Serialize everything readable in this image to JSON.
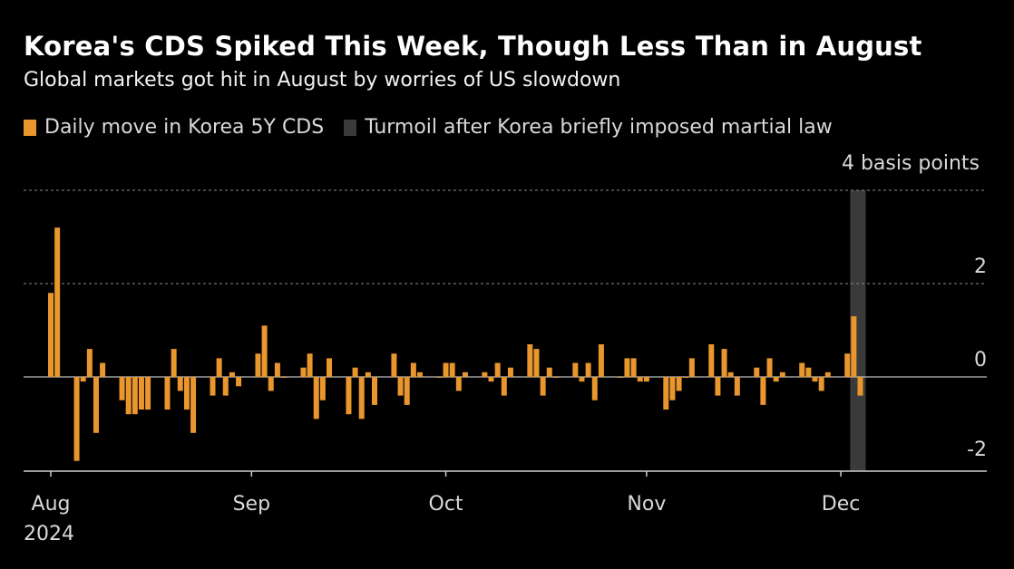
{
  "chart_data": {
    "type": "bar",
    "title": "Korea's CDS Spiked This Week, Though Less Than in August",
    "subtitle": "Global markets got hit in August by worries of US slowdown",
    "legend": [
      {
        "label": "Daily move in Korea 5Y CDS",
        "color": "#e8962d"
      },
      {
        "label": "Turmoil after Korea briefly imposed martial law",
        "color": "#3a3a3a"
      }
    ],
    "unit_label": "4 basis points",
    "ylim": [
      -2,
      4
    ],
    "y_ticks": [
      {
        "value": 4,
        "label": ""
      },
      {
        "value": 2,
        "label": "2"
      },
      {
        "value": 0,
        "label": "0"
      },
      {
        "value": -2,
        "label": "-2"
      }
    ],
    "x_ticks": [
      "Aug",
      "Sep",
      "Oct",
      "Nov",
      "Dec"
    ],
    "x_year": "2024",
    "highlight_range": [
      "2024-12-03",
      "2024-12-04"
    ],
    "series": [
      {
        "name": "Daily move in Korea 5Y CDS",
        "x": [
          "2024-08-01",
          "2024-08-02",
          "2024-08-05",
          "2024-08-06",
          "2024-08-07",
          "2024-08-08",
          "2024-08-09",
          "2024-08-12",
          "2024-08-13",
          "2024-08-14",
          "2024-08-15",
          "2024-08-16",
          "2024-08-19",
          "2024-08-20",
          "2024-08-21",
          "2024-08-22",
          "2024-08-23",
          "2024-08-26",
          "2024-08-27",
          "2024-08-28",
          "2024-08-29",
          "2024-08-30",
          "2024-09-02",
          "2024-09-03",
          "2024-09-04",
          "2024-09-05",
          "2024-09-06",
          "2024-09-09",
          "2024-09-10",
          "2024-09-11",
          "2024-09-12",
          "2024-09-13",
          "2024-09-16",
          "2024-09-17",
          "2024-09-18",
          "2024-09-19",
          "2024-09-20",
          "2024-09-23",
          "2024-09-24",
          "2024-09-25",
          "2024-09-26",
          "2024-09-27",
          "2024-09-30",
          "2024-10-01",
          "2024-10-02",
          "2024-10-03",
          "2024-10-04",
          "2024-10-07",
          "2024-10-08",
          "2024-10-09",
          "2024-10-10",
          "2024-10-11",
          "2024-10-14",
          "2024-10-15",
          "2024-10-16",
          "2024-10-17",
          "2024-10-18",
          "2024-10-21",
          "2024-10-22",
          "2024-10-23",
          "2024-10-24",
          "2024-10-25",
          "2024-10-28",
          "2024-10-29",
          "2024-10-30",
          "2024-10-31",
          "2024-11-01",
          "2024-11-04",
          "2024-11-05",
          "2024-11-06",
          "2024-11-07",
          "2024-11-08",
          "2024-11-11",
          "2024-11-12",
          "2024-11-13",
          "2024-11-14",
          "2024-11-15",
          "2024-11-18",
          "2024-11-19",
          "2024-11-20",
          "2024-11-21",
          "2024-11-22",
          "2024-11-25",
          "2024-11-26",
          "2024-11-27",
          "2024-11-28",
          "2024-11-29",
          "2024-12-02",
          "2024-12-03",
          "2024-12-04"
        ],
        "values": [
          1.8,
          3.2,
          -1.8,
          -0.1,
          0.6,
          -1.2,
          0.3,
          -0.5,
          -0.8,
          -0.8,
          -0.7,
          -0.7,
          -0.7,
          0.6,
          -0.3,
          -0.7,
          -1.2,
          -0.4,
          0.4,
          -0.4,
          0.1,
          -0.2,
          0.5,
          1.1,
          -0.3,
          0.3,
          0.0,
          0.2,
          0.5,
          -0.9,
          -0.5,
          0.4,
          -0.8,
          0.2,
          -0.9,
          0.1,
          -0.6,
          0.5,
          -0.4,
          -0.6,
          0.3,
          0.1,
          0.0,
          0.3,
          0.3,
          -0.3,
          0.1,
          0.1,
          -0.1,
          0.3,
          -0.4,
          0.2,
          0.7,
          0.6,
          -0.4,
          0.2,
          0.0,
          0.3,
          -0.1,
          0.3,
          -0.5,
          0.7,
          0.0,
          0.4,
          0.4,
          -0.1,
          -0.1,
          -0.7,
          -0.5,
          -0.3,
          0.0,
          0.4,
          0.7,
          -0.4,
          0.6,
          0.1,
          -0.4,
          0.2,
          -0.6,
          0.4,
          -0.1,
          0.1,
          0.3,
          0.2,
          -0.1,
          -0.3,
          0.1,
          0.5,
          1.3,
          -0.4
        ]
      }
    ]
  }
}
